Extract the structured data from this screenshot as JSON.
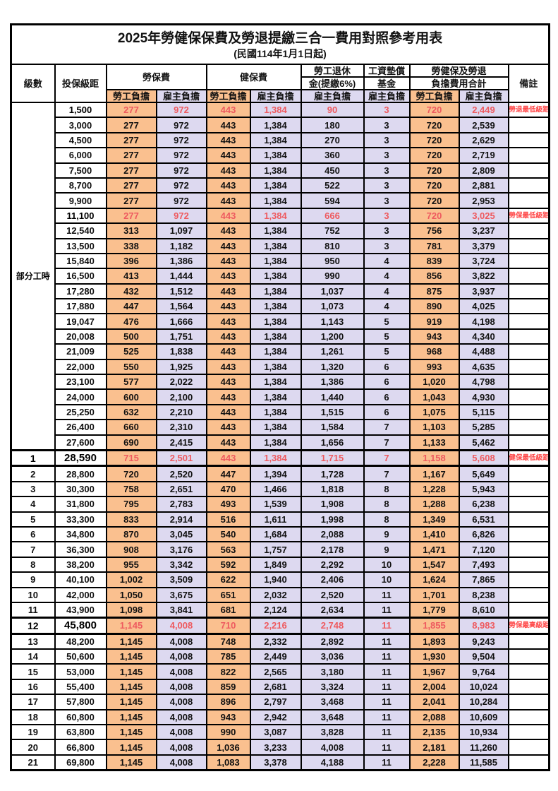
{
  "title": "2025年勞健保保費及勞退提繳三合一費用對照參考用表",
  "subtitle": "(民國114年1月1日起)",
  "header": {
    "level": "級數",
    "bracket": "投保級距",
    "labor_ins": "勞保費",
    "health_ins": "健保費",
    "pension_line1": "勞工退休",
    "pension_line2": "金(提繳6%)",
    "wage_fund_line1": "工資墊償",
    "wage_fund_line2": "基金",
    "total_line1": "勞健保及勞退",
    "total_line2": "負擔費用合計",
    "remark": "備註",
    "employee": "勞工負擔",
    "employer": "雇主負擔"
  },
  "part_time_label": "部分工時",
  "part_time_rowspan": 23,
  "colors": {
    "employee_bg": "#FAC08F",
    "employer_bg": "#DDD9F0",
    "highlight_text": "#EE5A5F",
    "remark_text": "#FF4646"
  },
  "chart_data": {
    "type": "table",
    "title": "2025年勞健保保費及勞退提繳三合一費用對照參考用表 (民國114年1月1日起)",
    "columns": [
      "級數",
      "投保級距",
      "勞保費-勞工負擔",
      "勞保費-雇主負擔",
      "健保費-勞工負擔",
      "健保費-雇主負擔",
      "勞工退休金(提繳6%)-雇主負擔",
      "工資墊償基金-雇主負擔",
      "合計-勞工負擔",
      "合計-雇主負擔",
      "備註"
    ]
  },
  "rows": [
    {
      "level": null,
      "bracket": "1,500",
      "v": [
        "277",
        "972",
        "443",
        "1,384",
        "90",
        "3",
        "720",
        "2,449"
      ],
      "remark": "勞退最低級距",
      "hl": true,
      "strong": false
    },
    {
      "level": null,
      "bracket": "3,000",
      "v": [
        "277",
        "972",
        "443",
        "1,384",
        "180",
        "3",
        "720",
        "2,539"
      ],
      "remark": "",
      "hl": false,
      "strong": false
    },
    {
      "level": null,
      "bracket": "4,500",
      "v": [
        "277",
        "972",
        "443",
        "1,384",
        "270",
        "3",
        "720",
        "2,629"
      ],
      "remark": "",
      "hl": false,
      "strong": false
    },
    {
      "level": null,
      "bracket": "6,000",
      "v": [
        "277",
        "972",
        "443",
        "1,384",
        "360",
        "3",
        "720",
        "2,719"
      ],
      "remark": "",
      "hl": false,
      "strong": false
    },
    {
      "level": null,
      "bracket": "7,500",
      "v": [
        "277",
        "972",
        "443",
        "1,384",
        "450",
        "3",
        "720",
        "2,809"
      ],
      "remark": "",
      "hl": false,
      "strong": false
    },
    {
      "level": null,
      "bracket": "8,700",
      "v": [
        "277",
        "972",
        "443",
        "1,384",
        "522",
        "3",
        "720",
        "2,881"
      ],
      "remark": "",
      "hl": false,
      "strong": false
    },
    {
      "level": null,
      "bracket": "9,900",
      "v": [
        "277",
        "972",
        "443",
        "1,384",
        "594",
        "3",
        "720",
        "2,953"
      ],
      "remark": "",
      "hl": false,
      "strong": false
    },
    {
      "level": null,
      "bracket": "11,100",
      "v": [
        "277",
        "972",
        "443",
        "1,384",
        "666",
        "3",
        "720",
        "3,025"
      ],
      "remark": "勞保最低級距",
      "hl": true,
      "strong": false
    },
    {
      "level": null,
      "bracket": "12,540",
      "v": [
        "313",
        "1,097",
        "443",
        "1,384",
        "752",
        "3",
        "756",
        "3,237"
      ],
      "remark": "",
      "hl": false,
      "strong": false
    },
    {
      "level": null,
      "bracket": "13,500",
      "v": [
        "338",
        "1,182",
        "443",
        "1,384",
        "810",
        "3",
        "781",
        "3,379"
      ],
      "remark": "",
      "hl": false,
      "strong": false
    },
    {
      "level": null,
      "bracket": "15,840",
      "v": [
        "396",
        "1,386",
        "443",
        "1,384",
        "950",
        "4",
        "839",
        "3,724"
      ],
      "remark": "",
      "hl": false,
      "strong": false
    },
    {
      "level": null,
      "bracket": "16,500",
      "v": [
        "413",
        "1,444",
        "443",
        "1,384",
        "990",
        "4",
        "856",
        "3,822"
      ],
      "remark": "",
      "hl": false,
      "strong": false
    },
    {
      "level": null,
      "bracket": "17,280",
      "v": [
        "432",
        "1,512",
        "443",
        "1,384",
        "1,037",
        "4",
        "875",
        "3,937"
      ],
      "remark": "",
      "hl": false,
      "strong": false
    },
    {
      "level": null,
      "bracket": "17,880",
      "v": [
        "447",
        "1,564",
        "443",
        "1,384",
        "1,073",
        "4",
        "890",
        "4,025"
      ],
      "remark": "",
      "hl": false,
      "strong": false
    },
    {
      "level": null,
      "bracket": "19,047",
      "v": [
        "476",
        "1,666",
        "443",
        "1,384",
        "1,143",
        "5",
        "919",
        "4,198"
      ],
      "remark": "",
      "hl": false,
      "strong": false
    },
    {
      "level": null,
      "bracket": "20,008",
      "v": [
        "500",
        "1,751",
        "443",
        "1,384",
        "1,200",
        "5",
        "943",
        "4,340"
      ],
      "remark": "",
      "hl": false,
      "strong": false
    },
    {
      "level": null,
      "bracket": "21,009",
      "v": [
        "525",
        "1,838",
        "443",
        "1,384",
        "1,261",
        "5",
        "968",
        "4,488"
      ],
      "remark": "",
      "hl": false,
      "strong": false
    },
    {
      "level": null,
      "bracket": "22,000",
      "v": [
        "550",
        "1,925",
        "443",
        "1,384",
        "1,320",
        "6",
        "993",
        "4,635"
      ],
      "remark": "",
      "hl": false,
      "strong": false
    },
    {
      "level": null,
      "bracket": "23,100",
      "v": [
        "577",
        "2,022",
        "443",
        "1,384",
        "1,386",
        "6",
        "1,020",
        "4,798"
      ],
      "remark": "",
      "hl": false,
      "strong": false
    },
    {
      "level": null,
      "bracket": "24,000",
      "v": [
        "600",
        "2,100",
        "443",
        "1,384",
        "1,440",
        "6",
        "1,043",
        "4,930"
      ],
      "remark": "",
      "hl": false,
      "strong": false
    },
    {
      "level": null,
      "bracket": "25,250",
      "v": [
        "632",
        "2,210",
        "443",
        "1,384",
        "1,515",
        "6",
        "1,075",
        "5,115"
      ],
      "remark": "",
      "hl": false,
      "strong": false
    },
    {
      "level": null,
      "bracket": "26,400",
      "v": [
        "660",
        "2,310",
        "443",
        "1,384",
        "1,584",
        "7",
        "1,103",
        "5,285"
      ],
      "remark": "",
      "hl": false,
      "strong": false
    },
    {
      "level": null,
      "bracket": "27,600",
      "v": [
        "690",
        "2,415",
        "443",
        "1,384",
        "1,656",
        "7",
        "1,133",
        "5,462"
      ],
      "remark": "",
      "hl": false,
      "strong": false
    },
    {
      "level": "1",
      "bracket": "28,590",
      "v": [
        "715",
        "2,501",
        "443",
        "1,384",
        "1,715",
        "7",
        "1,158",
        "5,608"
      ],
      "remark": "健保最低級距",
      "hl": true,
      "strong": true
    },
    {
      "level": "2",
      "bracket": "28,800",
      "v": [
        "720",
        "2,520",
        "447",
        "1,394",
        "1,728",
        "7",
        "1,167",
        "5,649"
      ],
      "remark": "",
      "hl": false,
      "strong": false
    },
    {
      "level": "3",
      "bracket": "30,300",
      "v": [
        "758",
        "2,651",
        "470",
        "1,466",
        "1,818",
        "8",
        "1,228",
        "5,943"
      ],
      "remark": "",
      "hl": false,
      "strong": false
    },
    {
      "level": "4",
      "bracket": "31,800",
      "v": [
        "795",
        "2,783",
        "493",
        "1,539",
        "1,908",
        "8",
        "1,288",
        "6,238"
      ],
      "remark": "",
      "hl": false,
      "strong": false
    },
    {
      "level": "5",
      "bracket": "33,300",
      "v": [
        "833",
        "2,914",
        "516",
        "1,611",
        "1,998",
        "8",
        "1,349",
        "6,531"
      ],
      "remark": "",
      "hl": false,
      "strong": false
    },
    {
      "level": "6",
      "bracket": "34,800",
      "v": [
        "870",
        "3,045",
        "540",
        "1,684",
        "2,088",
        "9",
        "1,410",
        "6,826"
      ],
      "remark": "",
      "hl": false,
      "strong": false
    },
    {
      "level": "7",
      "bracket": "36,300",
      "v": [
        "908",
        "3,176",
        "563",
        "1,757",
        "2,178",
        "9",
        "1,471",
        "7,120"
      ],
      "remark": "",
      "hl": false,
      "strong": false
    },
    {
      "level": "8",
      "bracket": "38,200",
      "v": [
        "955",
        "3,342",
        "592",
        "1,849",
        "2,292",
        "10",
        "1,547",
        "7,493"
      ],
      "remark": "",
      "hl": false,
      "strong": false
    },
    {
      "level": "9",
      "bracket": "40,100",
      "v": [
        "1,002",
        "3,509",
        "622",
        "1,940",
        "2,406",
        "10",
        "1,624",
        "7,865"
      ],
      "remark": "",
      "hl": false,
      "strong": false
    },
    {
      "level": "10",
      "bracket": "42,000",
      "v": [
        "1,050",
        "3,675",
        "651",
        "2,032",
        "2,520",
        "11",
        "1,701",
        "8,238"
      ],
      "remark": "",
      "hl": false,
      "strong": false
    },
    {
      "level": "11",
      "bracket": "43,900",
      "v": [
        "1,098",
        "3,841",
        "681",
        "2,124",
        "2,634",
        "11",
        "1,779",
        "8,610"
      ],
      "remark": "",
      "hl": false,
      "strong": false
    },
    {
      "level": "12",
      "bracket": "45,800",
      "v": [
        "1,145",
        "4,008",
        "710",
        "2,216",
        "2,748",
        "11",
        "1,855",
        "8,983"
      ],
      "remark": "勞保最高級距",
      "hl": true,
      "strong": true
    },
    {
      "level": "13",
      "bracket": "48,200",
      "v": [
        "1,145",
        "4,008",
        "748",
        "2,332",
        "2,892",
        "11",
        "1,893",
        "9,243"
      ],
      "remark": "",
      "hl": false,
      "strong": false
    },
    {
      "level": "14",
      "bracket": "50,600",
      "v": [
        "1,145",
        "4,008",
        "785",
        "2,449",
        "3,036",
        "11",
        "1,930",
        "9,504"
      ],
      "remark": "",
      "hl": false,
      "strong": false
    },
    {
      "level": "15",
      "bracket": "53,000",
      "v": [
        "1,145",
        "4,008",
        "822",
        "2,565",
        "3,180",
        "11",
        "1,967",
        "9,764"
      ],
      "remark": "",
      "hl": false,
      "strong": false
    },
    {
      "level": "16",
      "bracket": "55,400",
      "v": [
        "1,145",
        "4,008",
        "859",
        "2,681",
        "3,324",
        "11",
        "2,004",
        "10,024"
      ],
      "remark": "",
      "hl": false,
      "strong": false
    },
    {
      "level": "17",
      "bracket": "57,800",
      "v": [
        "1,145",
        "4,008",
        "896",
        "2,797",
        "3,468",
        "11",
        "2,041",
        "10,284"
      ],
      "remark": "",
      "hl": false,
      "strong": false
    },
    {
      "level": "18",
      "bracket": "60,800",
      "v": [
        "1,145",
        "4,008",
        "943",
        "2,942",
        "3,648",
        "11",
        "2,088",
        "10,609"
      ],
      "remark": "",
      "hl": false,
      "strong": false
    },
    {
      "level": "19",
      "bracket": "63,800",
      "v": [
        "1,145",
        "4,008",
        "990",
        "3,087",
        "3,828",
        "11",
        "2,135",
        "10,934"
      ],
      "remark": "",
      "hl": false,
      "strong": false
    },
    {
      "level": "20",
      "bracket": "66,800",
      "v": [
        "1,145",
        "4,008",
        "1,036",
        "3,233",
        "4,008",
        "11",
        "2,181",
        "11,260"
      ],
      "remark": "",
      "hl": false,
      "strong": false
    },
    {
      "level": "21",
      "bracket": "69,800",
      "v": [
        "1,145",
        "4,008",
        "1,083",
        "3,378",
        "4,188",
        "11",
        "2,228",
        "11,585"
      ],
      "remark": "",
      "hl": false,
      "strong": false
    }
  ]
}
